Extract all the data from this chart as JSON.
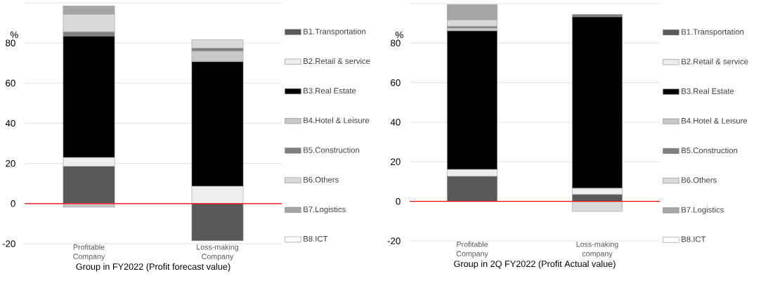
{
  "chart_data": [
    {
      "type": "bar",
      "stacked": true,
      "xlabel": "Group in FY2022 (Profit forecast value)",
      "ylabel": "%",
      "categories": [
        "Profitable Company",
        "Loss-making Company"
      ],
      "series": [
        {
          "name": "B1.Transportation",
          "color": "#595959",
          "values": [
            18.6,
            -18.5
          ]
        },
        {
          "name": "B2.Retail & service",
          "color": "#eeeeee",
          "values": [
            4.4,
            8.7
          ]
        },
        {
          "name": "B3.Real Estate",
          "color": "#000000",
          "values": [
            60.5,
            62.0
          ]
        },
        {
          "name": "B4.Hotel & Leisure",
          "color": "#c8c8c8",
          "values": [
            -1.8,
            5.3
          ]
        },
        {
          "name": "B5.Construction",
          "color": "#7f7f7f",
          "values": [
            2.1,
            1.4
          ]
        },
        {
          "name": "B6.Others",
          "color": "#d9d9d9",
          "values": [
            8.8,
            4.2
          ]
        },
        {
          "name": "B7.Logistics",
          "color": "#a6a6a6",
          "values": [
            4.0,
            0
          ]
        },
        {
          "name": "B8.ICT",
          "color": "#ffffff",
          "values": [
            0,
            0
          ]
        }
      ],
      "ylim": [
        -20,
        100
      ],
      "yticks": [
        -20,
        0,
        20,
        40,
        60,
        80,
        {
          "value": 100,
          "label": null
        }
      ],
      "grid": "y",
      "legend": "right",
      "ref_lines": [
        {
          "axis": "y",
          "value": 0,
          "color": "#ff0000"
        }
      ]
    },
    {
      "type": "bar",
      "stacked": true,
      "xlabel": "Group in 2Q FY2022 (Profit Actual value)",
      "ylabel": "%",
      "categories": [
        "Profitable Company",
        "Loss-making company"
      ],
      "series": [
        {
          "name": "B1.Transportation",
          "color": "#595959",
          "values": [
            12.7,
            3.5
          ]
        },
        {
          "name": "B2.Retail & service",
          "color": "#eeeeee",
          "values": [
            3.5,
            3.2
          ]
        },
        {
          "name": "B3.Real Estate",
          "color": "#000000",
          "values": [
            70.0,
            86.6
          ]
        },
        {
          "name": "B4.Hotel & Leisure",
          "color": "#c8c8c8",
          "values": [
            1.5,
            0
          ]
        },
        {
          "name": "B5.Construction",
          "color": "#7f7f7f",
          "values": [
            0.8,
            1.2
          ]
        },
        {
          "name": "B6.Others",
          "color": "#d9d9d9",
          "values": [
            3.3,
            -5.1
          ]
        },
        {
          "name": "B7.Logistics",
          "color": "#a6a6a6",
          "values": [
            7.7,
            0
          ]
        },
        {
          "name": "B8.ICT",
          "color": "#ffffff",
          "values": [
            0,
            0
          ]
        }
      ],
      "ylim": [
        -20,
        100
      ],
      "yticks": [
        -20,
        0,
        20,
        40,
        60,
        80,
        {
          "value": 100,
          "label": null
        }
      ],
      "grid": "y",
      "legend": "right",
      "ref_lines": [
        {
          "axis": "y",
          "value": 0,
          "color": "#ff0000"
        }
      ]
    }
  ]
}
